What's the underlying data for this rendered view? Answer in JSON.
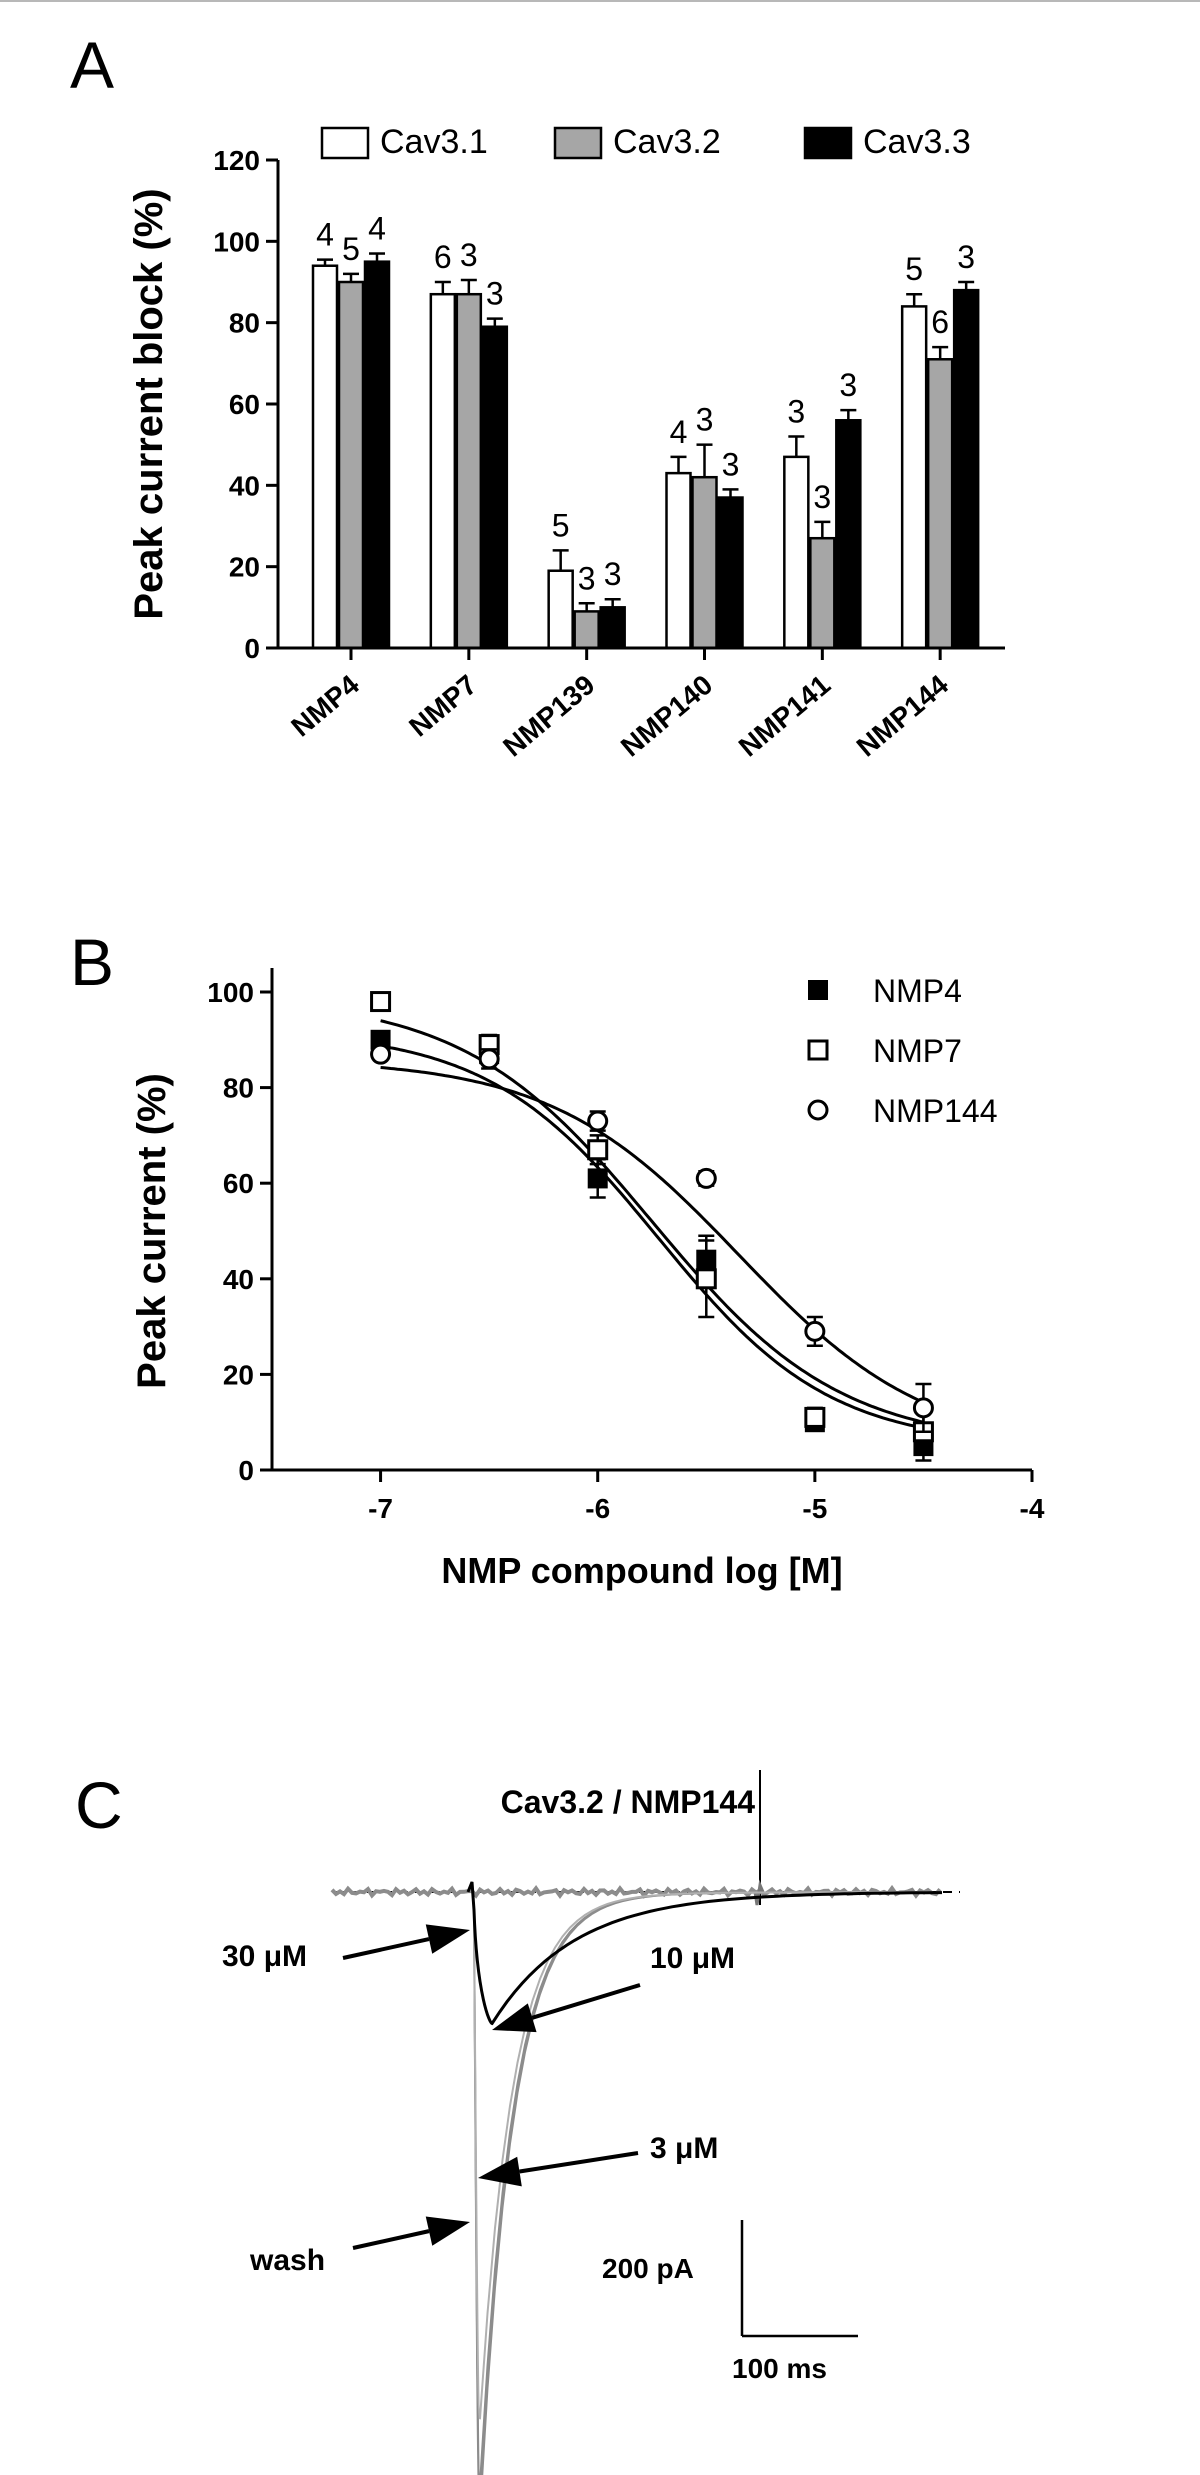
{
  "panel_labels": {
    "a": "A",
    "b": "B",
    "c": "C"
  },
  "colors": {
    "cav31": "#ffffff",
    "cav32": "#a6a6a6",
    "cav33": "#000000",
    "trace_gray": "#8c8c8c"
  },
  "chart_data": [
    {
      "panel": "A",
      "type": "bar",
      "title": "",
      "xlabel": "",
      "ylabel": "Peak current block (%)",
      "ylim": [
        0,
        120
      ],
      "yticks": [
        "0",
        "20",
        "40",
        "60",
        "80",
        "100",
        "120"
      ],
      "categories": [
        "NMP4",
        "NMP7",
        "NMP139",
        "NMP140",
        "NMP141",
        "NMP144"
      ],
      "legend_position": "top",
      "series": [
        {
          "name": "Cav3.1",
          "values": [
            94,
            87,
            19,
            43,
            47,
            84
          ],
          "errors": [
            1.5,
            3,
            5,
            4,
            5,
            3
          ],
          "n": [
            "4",
            "6",
            "5",
            "4",
            "3",
            "5"
          ]
        },
        {
          "name": "Cav3.2",
          "values": [
            90,
            87,
            9,
            42,
            27,
            71
          ],
          "errors": [
            2,
            3.5,
            2,
            8,
            4,
            3
          ],
          "n": [
            "5",
            "3",
            "3",
            "3",
            "3",
            "6"
          ]
        },
        {
          "name": "Cav3.3",
          "values": [
            95,
            79,
            10,
            37,
            56,
            88
          ],
          "errors": [
            2,
            2,
            2,
            2,
            2.5,
            2
          ],
          "n": [
            "4",
            "3",
            "3",
            "3",
            "3",
            "3"
          ]
        }
      ]
    },
    {
      "panel": "B",
      "type": "scatter",
      "title": "",
      "xlabel": "NMP compound log [M]",
      "ylabel": "Peak current (%)",
      "xlim": [
        -7.5,
        -4
      ],
      "ylim": [
        0,
        100
      ],
      "xticks": [
        "-7",
        "-6",
        "-5",
        "-4"
      ],
      "yticks": [
        "0",
        "20",
        "40",
        "60",
        "80",
        "100"
      ],
      "legend_position": "top-right",
      "x": [
        -7,
        -6.5,
        -6,
        -5.5,
        -5,
        -4.5
      ],
      "series": [
        {
          "name": "NMP4",
          "marker": "filled-square",
          "values": [
            90,
            87,
            61,
            44,
            10,
            5
          ],
          "errors": [
            1.5,
            2,
            4,
            5,
            1.5,
            3
          ],
          "fit": {
            "top": 92,
            "bottom": 5,
            "logEC50": -5.72,
            "hill": 1.1
          }
        },
        {
          "name": "NMP7",
          "marker": "open-square",
          "values": [
            98,
            89,
            67,
            40,
            11,
            8
          ],
          "errors": [
            1,
            2,
            3,
            8,
            2,
            4
          ],
          "fit": {
            "top": 99,
            "bottom": 5,
            "logEC50": -5.75,
            "hill": 1.0
          }
        },
        {
          "name": "NMP144",
          "marker": "open-circle",
          "values": [
            87,
            86,
            73,
            61,
            29,
            13
          ],
          "errors": [
            1,
            2,
            2,
            1.5,
            3,
            5
          ],
          "fit": {
            "top": 86,
            "bottom": 4,
            "logEC50": -5.35,
            "hill": 1.0
          }
        }
      ]
    }
  ],
  "panel_c": {
    "title": "Cav3.2 / NMP144",
    "labels": {
      "c30": "30 μM",
      "c10": "10 μM",
      "c3": "3 μM",
      "wash": "wash"
    },
    "scale": {
      "y": "200 pA",
      "x": "100 ms"
    },
    "peaks": [
      {
        "name": "wash",
        "pA": 660,
        "color": "#8c8c8c"
      },
      {
        "name": "3 μM",
        "pA": 630,
        "color": "#8c8c8c"
      },
      {
        "name": "10 μM",
        "pA": 560,
        "color": "#b0b0b0"
      },
      {
        "name": "30 μM",
        "pA": 140,
        "color": "#000000"
      }
    ]
  }
}
